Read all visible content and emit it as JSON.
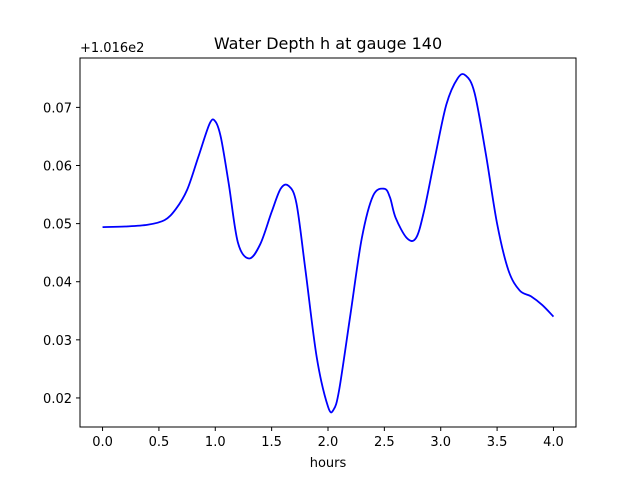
{
  "chart_data": {
    "type": "line",
    "title": "Water Depth h at gauge 140",
    "xlabel": "hours",
    "ylabel": "",
    "offset_label": "+1.016e2",
    "xlim": [
      -0.2,
      4.2
    ],
    "ylim": [
      0.015,
      0.0785
    ],
    "x_ticks": [
      0.0,
      0.5,
      1.0,
      1.5,
      2.0,
      2.5,
      3.0,
      3.5,
      4.0
    ],
    "x_tick_labels": [
      "0.0",
      "0.5",
      "1.0",
      "1.5",
      "2.0",
      "2.5",
      "3.0",
      "3.5",
      "4.0"
    ],
    "y_ticks": [
      0.02,
      0.03,
      0.04,
      0.05,
      0.06,
      0.07
    ],
    "y_tick_labels": [
      "0.02",
      "0.03",
      "0.04",
      "0.05",
      "0.06",
      "0.07"
    ],
    "grid": false,
    "series": [
      {
        "color": "#0000ff",
        "x": [
          0.0,
          0.2,
          0.4,
          0.55,
          0.65,
          0.75,
          0.85,
          0.95,
          1.0,
          1.05,
          1.12,
          1.2,
          1.3,
          1.4,
          1.5,
          1.58,
          1.65,
          1.72,
          1.8,
          1.9,
          2.0,
          2.05,
          2.1,
          2.2,
          2.3,
          2.4,
          2.5,
          2.55,
          2.6,
          2.7,
          2.78,
          2.85,
          2.95,
          3.05,
          3.15,
          3.22,
          3.3,
          3.4,
          3.5,
          3.6,
          3.7,
          3.8,
          3.9,
          4.0
        ],
        "y": [
          0.0494,
          0.0495,
          0.0498,
          0.0506,
          0.0525,
          0.0558,
          0.0615,
          0.0672,
          0.0676,
          0.0648,
          0.0568,
          0.0468,
          0.044,
          0.0465,
          0.052,
          0.056,
          0.0565,
          0.0535,
          0.042,
          0.027,
          0.0185,
          0.018,
          0.0215,
          0.0345,
          0.0475,
          0.0548,
          0.056,
          0.0545,
          0.051,
          0.0475,
          0.0475,
          0.052,
          0.0615,
          0.0705,
          0.075,
          0.0755,
          0.0725,
          0.062,
          0.05,
          0.042,
          0.0385,
          0.0375,
          0.036,
          0.034
        ]
      }
    ]
  }
}
